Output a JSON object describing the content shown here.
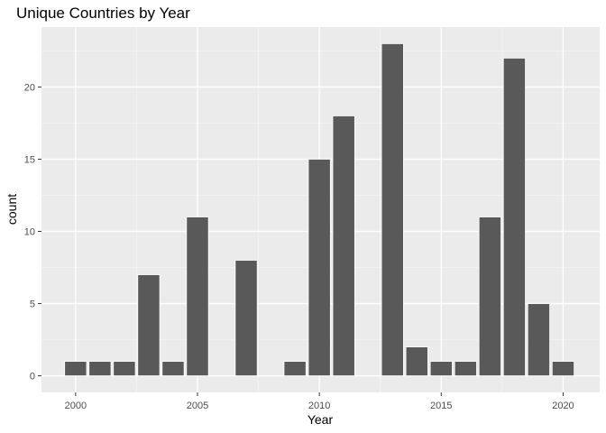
{
  "chart_data": {
    "type": "bar",
    "title": "Unique Countries by Year",
    "xlabel": "Year",
    "ylabel": "count",
    "x": [
      2000,
      2001,
      2002,
      2003,
      2004,
      2005,
      2007,
      2009,
      2010,
      2011,
      2013,
      2014,
      2015,
      2016,
      2017,
      2018,
      2019,
      2020
    ],
    "values": [
      1,
      1,
      1,
      7,
      1,
      11,
      8,
      1,
      15,
      18,
      23,
      2,
      1,
      1,
      11,
      22,
      5,
      1
    ],
    "xlim": [
      1998.6,
      2021.5
    ],
    "ylim": [
      -1.15,
      24.15
    ],
    "xticks": [
      2000,
      2005,
      2010,
      2015,
      2020
    ],
    "yticks": [
      0,
      5,
      10,
      15,
      20
    ],
    "grid": true,
    "colors": {
      "bar_fill": "#595959",
      "bar_stroke": "#ffffff",
      "panel_background": "#ebebeb",
      "grid_major": "#ffffff",
      "grid_minor": "#f5f5f5"
    }
  }
}
